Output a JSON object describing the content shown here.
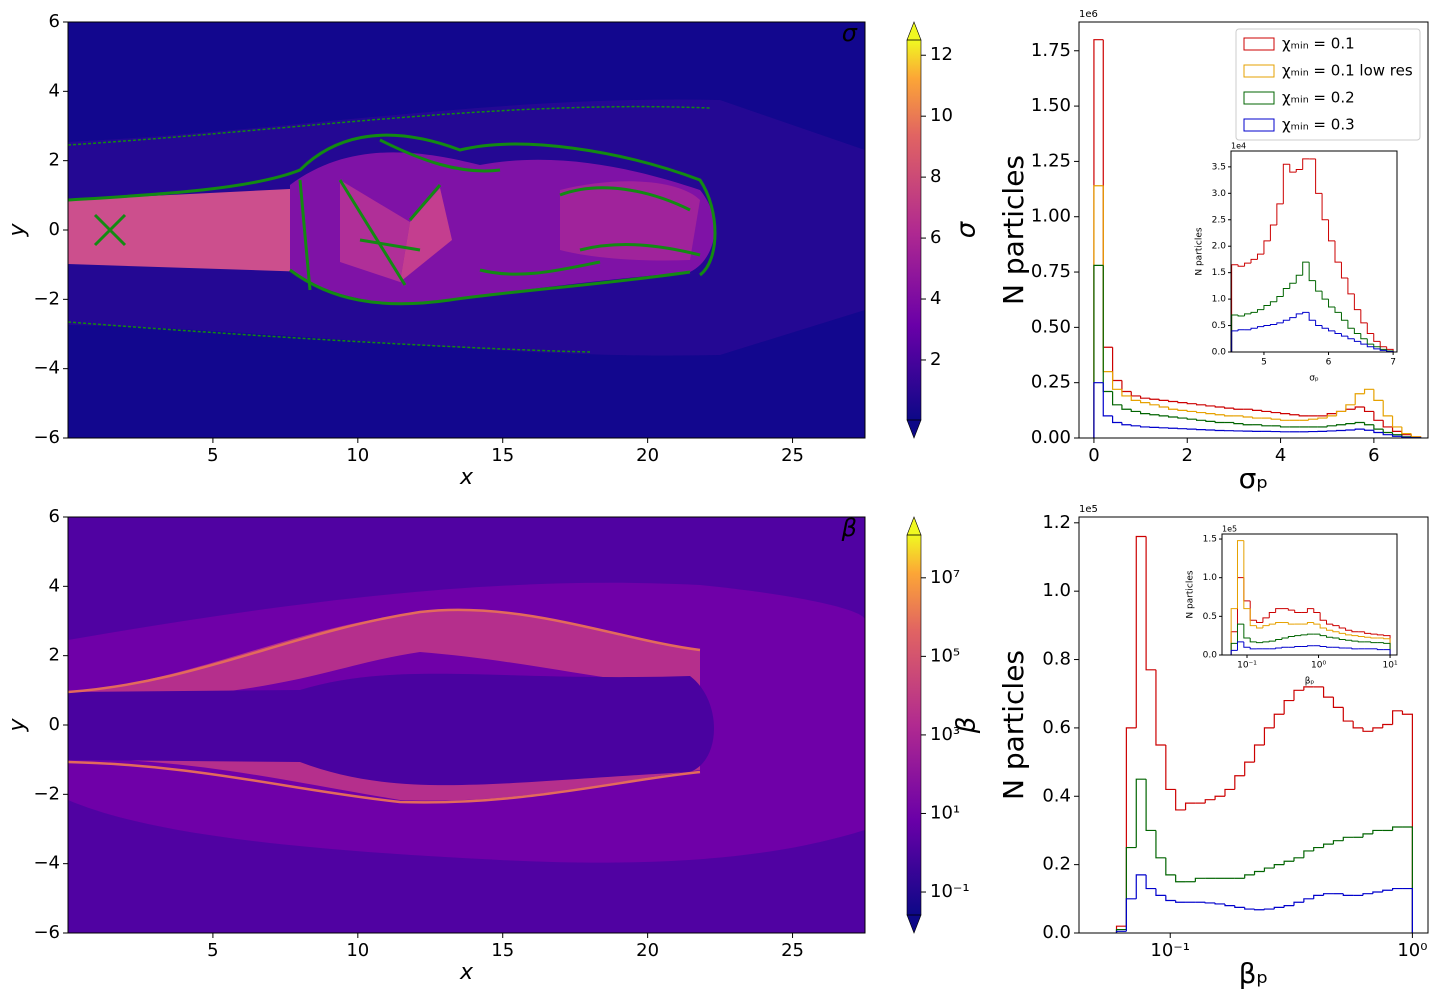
{
  "chart_data": [
    {
      "type": "heatmap",
      "annotation": "σ",
      "xlabel": "x",
      "ylabel": "y",
      "xlim": [
        0,
        27.5
      ],
      "ylim": [
        -6,
        6
      ],
      "xticks": [
        5,
        10,
        15,
        20,
        25
      ],
      "yticks": [
        {
          "value": -6,
          "label": "−6"
        },
        {
          "value": -4,
          "label": "−4"
        },
        {
          "value": -2,
          "label": "−2"
        },
        0,
        2,
        4,
        6
      ],
      "colorbar": {
        "label": "σ",
        "clim": [
          0.03,
          12.5
        ],
        "ticks": [
          2,
          4,
          6,
          8,
          10,
          12
        ],
        "scale": "linear",
        "cmap": "plasma",
        "extend": "both"
      }
    },
    {
      "type": "histogram",
      "xlabel": "σₚ",
      "ylabel": "N particles",
      "offset_label": "1e6",
      "xlim": [
        -0.32,
        7.16
      ],
      "ylim": [
        0,
        1.88
      ],
      "xticks": [
        0,
        2,
        4,
        6
      ],
      "yticks": [
        {
          "value": 0,
          "label": "0.00"
        },
        0.25,
        {
          "value": 0.5,
          "label": "0.50"
        },
        0.75,
        {
          "value": 1,
          "label": "1.00"
        },
        1.25,
        {
          "value": 1.5,
          "label": "1.50"
        },
        1.75
      ],
      "legend": "upper right",
      "bins": [
        0,
        0.2,
        0.4,
        0.6,
        0.8,
        1.0,
        1.2,
        1.4,
        1.6,
        1.8,
        2.0,
        2.2,
        2.4,
        2.6,
        2.8,
        3.0,
        3.2,
        3.4,
        3.6,
        3.8,
        4.0,
        4.2,
        4.4,
        4.6,
        4.8,
        5.0,
        5.2,
        5.4,
        5.6,
        5.8,
        6.0,
        6.2,
        6.4,
        6.6,
        6.8,
        7.0
      ],
      "series": [
        {
          "name": "χₘᵢₙ = 0.1",
          "color": "#cc0000",
          "values": [
            1.8,
            0.41,
            0.26,
            0.21,
            0.19,
            0.18,
            0.175,
            0.17,
            0.165,
            0.16,
            0.155,
            0.15,
            0.145,
            0.14,
            0.135,
            0.13,
            0.13,
            0.125,
            0.12,
            0.115,
            0.11,
            0.105,
            0.1,
            0.1,
            0.1,
            0.11,
            0.12,
            0.13,
            0.14,
            0.12,
            0.08,
            0.05,
            0.03,
            0.015,
            0.005
          ]
        },
        {
          "name": "χₘᵢₙ = 0.1 low res",
          "color": "#e6a100",
          "values": [
            1.14,
            0.3,
            0.22,
            0.19,
            0.17,
            0.16,
            0.15,
            0.14,
            0.13,
            0.125,
            0.12,
            0.115,
            0.11,
            0.105,
            0.1,
            0.1,
            0.095,
            0.09,
            0.09,
            0.085,
            0.08,
            0.08,
            0.08,
            0.085,
            0.09,
            0.1,
            0.12,
            0.15,
            0.2,
            0.22,
            0.17,
            0.1,
            0.05,
            0.02,
            0.005
          ]
        },
        {
          "name": "χₘᵢₙ = 0.2",
          "color": "#006400",
          "values": [
            0.78,
            0.21,
            0.15,
            0.13,
            0.12,
            0.11,
            0.105,
            0.1,
            0.095,
            0.09,
            0.085,
            0.08,
            0.075,
            0.07,
            0.07,
            0.065,
            0.06,
            0.06,
            0.055,
            0.055,
            0.05,
            0.05,
            0.05,
            0.05,
            0.05,
            0.055,
            0.06,
            0.065,
            0.07,
            0.06,
            0.04,
            0.025,
            0.015,
            0.005,
            0.002
          ]
        },
        {
          "name": "χₘᵢₙ = 0.3",
          "color": "#0000cc",
          "values": [
            0.25,
            0.1,
            0.07,
            0.06,
            0.055,
            0.05,
            0.048,
            0.046,
            0.044,
            0.042,
            0.04,
            0.038,
            0.036,
            0.034,
            0.033,
            0.032,
            0.031,
            0.03,
            0.03,
            0.029,
            0.028,
            0.028,
            0.028,
            0.029,
            0.03,
            0.032,
            0.034,
            0.036,
            0.04,
            0.035,
            0.025,
            0.015,
            0.008,
            0.003,
            0.001
          ]
        }
      ]
    },
    {
      "type": "histogram",
      "xlabel": "σₚ",
      "ylabel": "N particles",
      "offset_label": "1e4",
      "xlim": [
        4.49,
        7.06
      ],
      "ylim": [
        0,
        3.8
      ],
      "xticks": [
        5,
        6,
        7
      ],
      "yticks": [
        {
          "value": 0,
          "label": "0.0"
        },
        0.5,
        {
          "value": 1,
          "label": "1.0"
        },
        1.5,
        {
          "value": 2,
          "label": "2.0"
        },
        2.5,
        {
          "value": 3,
          "label": "3.0"
        },
        3.5
      ],
      "bins": [
        4.5,
        4.6,
        4.7,
        4.8,
        4.9,
        5.0,
        5.1,
        5.2,
        5.3,
        5.4,
        5.5,
        5.6,
        5.7,
        5.8,
        5.9,
        6.0,
        6.1,
        6.2,
        6.3,
        6.4,
        6.5,
        6.6,
        6.7,
        6.8,
        6.9,
        7.0
      ],
      "series": [
        {
          "color": "#cc0000",
          "values": [
            1.65,
            1.62,
            1.68,
            1.75,
            1.85,
            2.1,
            2.4,
            2.8,
            3.55,
            3.4,
            3.45,
            3.65,
            3.65,
            3.0,
            2.5,
            2.1,
            1.7,
            1.4,
            1.1,
            0.8,
            0.55,
            0.35,
            0.2,
            0.1,
            0.05
          ]
        },
        {
          "color": "#006400",
          "values": [
            0.7,
            0.68,
            0.72,
            0.75,
            0.8,
            0.88,
            0.95,
            1.05,
            1.2,
            1.3,
            1.45,
            1.7,
            1.35,
            1.15,
            1.0,
            0.85,
            0.75,
            0.6,
            0.45,
            0.35,
            0.25,
            0.15,
            0.1,
            0.05,
            0.02
          ]
        },
        {
          "color": "#0000cc",
          "values": [
            0.4,
            0.42,
            0.42,
            0.45,
            0.48,
            0.5,
            0.52,
            0.55,
            0.6,
            0.65,
            0.72,
            0.75,
            0.6,
            0.5,
            0.45,
            0.4,
            0.35,
            0.3,
            0.25,
            0.2,
            0.15,
            0.1,
            0.06,
            0.03,
            0.01
          ]
        }
      ]
    },
    {
      "type": "heatmap",
      "annotation": "β",
      "xlabel": "x",
      "ylabel": "y",
      "xlim": [
        0,
        27.5
      ],
      "ylim": [
        -6,
        6
      ],
      "xticks": [
        5,
        10,
        15,
        20,
        25
      ],
      "yticks": [
        {
          "value": -6,
          "label": "−6"
        },
        {
          "value": -4,
          "label": "−4"
        },
        {
          "value": -2,
          "label": "−2"
        },
        0,
        2,
        4,
        6
      ],
      "colorbar": {
        "label": "β",
        "clim": [
          0.026,
          123000000
        ],
        "scale": "log",
        "cmap": "plasma",
        "extend": "both",
        "ticks": [
          {
            "value": 0.1,
            "label": "10⁻¹"
          },
          {
            "value": 10,
            "label": "10¹"
          },
          {
            "value": 1000,
            "label": "10³"
          },
          {
            "value": 100000,
            "label": "10⁵"
          },
          {
            "value": 10000000,
            "label": "10⁷"
          }
        ]
      }
    },
    {
      "type": "histogram",
      "xlabel": "βₚ",
      "ylabel": "N particles",
      "offset_label": "1e5",
      "xscale": "log",
      "xlim": [
        0.042,
        1.16
      ],
      "ylim": [
        0,
        1.217
      ],
      "xticks": [
        {
          "value": 0.1,
          "label": "10⁻¹"
        },
        {
          "value": 1,
          "label": "10⁰"
        }
      ],
      "yticks": [
        {
          "value": 0,
          "label": "0.0"
        },
        0.2,
        0.4,
        0.6,
        0.8,
        {
          "value": 1,
          "label": "1.0"
        },
        1.2
      ],
      "bins": [
        0.06,
        0.0659,
        0.0724,
        0.0795,
        0.0873,
        0.0959,
        0.1053,
        0.1157,
        0.127,
        0.1395,
        0.1532,
        0.1683,
        0.1848,
        0.203,
        0.2229,
        0.2449,
        0.2689,
        0.2954,
        0.3244,
        0.3563,
        0.3913,
        0.4298,
        0.472,
        0.5184,
        0.5694,
        0.6253,
        0.6868,
        0.7543,
        0.8285,
        0.9099,
        1.0
      ],
      "series": [
        {
          "color": "#cc0000",
          "values": [
            0.02,
            0.6,
            1.16,
            0.77,
            0.55,
            0.42,
            0.36,
            0.38,
            0.38,
            0.39,
            0.4,
            0.42,
            0.46,
            0.5,
            0.55,
            0.6,
            0.64,
            0.68,
            0.71,
            0.72,
            0.72,
            0.69,
            0.66,
            0.62,
            0.6,
            0.59,
            0.6,
            0.61,
            0.65,
            0.64
          ]
        },
        {
          "color": "#006400",
          "values": [
            0.01,
            0.25,
            0.45,
            0.3,
            0.22,
            0.17,
            0.15,
            0.15,
            0.16,
            0.16,
            0.16,
            0.16,
            0.16,
            0.17,
            0.18,
            0.19,
            0.2,
            0.21,
            0.22,
            0.24,
            0.25,
            0.26,
            0.27,
            0.28,
            0.28,
            0.29,
            0.3,
            0.3,
            0.31,
            0.31
          ]
        },
        {
          "color": "#0000cc",
          "values": [
            0.005,
            0.1,
            0.17,
            0.13,
            0.11,
            0.095,
            0.09,
            0.09,
            0.09,
            0.088,
            0.085,
            0.08,
            0.075,
            0.07,
            0.068,
            0.07,
            0.075,
            0.08,
            0.09,
            0.1,
            0.11,
            0.115,
            0.115,
            0.11,
            0.11,
            0.115,
            0.12,
            0.125,
            0.13,
            0.13
          ]
        }
      ]
    },
    {
      "type": "histogram",
      "xlabel": "βₚ",
      "ylabel": "N particles",
      "offset_label": "1e5",
      "xscale": "log",
      "xlim": [
        0.0447,
        12.5
      ],
      "ylim": [
        0,
        1.565
      ],
      "xticks": [
        {
          "value": 0.1,
          "label": "10⁻¹"
        },
        {
          "value": 1,
          "label": "10⁰"
        },
        {
          "value": 10,
          "label": "10¹"
        }
      ],
      "yticks": [
        {
          "value": 0,
          "label": "0.0"
        },
        0.5,
        {
          "value": 1,
          "label": "1.0"
        },
        1.5
      ],
      "bins": [
        0.06,
        0.0736,
        0.0903,
        0.1108,
        0.136,
        0.1669,
        0.2048,
        0.2513,
        0.3084,
        0.3784,
        0.4644,
        0.5698,
        0.6992,
        0.858,
        1.0528,
        1.2919,
        1.5853,
        1.9453,
        2.3871,
        2.9292,
        3.5944,
        4.4107,
        5.4124,
        6.6415,
        8.1498,
        10.0
      ],
      "series": [
        {
          "color": "#cc0000",
          "values": [
            0.3,
            1.0,
            0.7,
            0.45,
            0.42,
            0.48,
            0.55,
            0.6,
            0.6,
            0.58,
            0.55,
            0.55,
            0.6,
            0.55,
            0.45,
            0.4,
            0.38,
            0.35,
            0.32,
            0.3,
            0.3,
            0.28,
            0.27,
            0.26,
            0.25
          ]
        },
        {
          "color": "#e6a100",
          "values": [
            0.6,
            1.48,
            0.6,
            0.38,
            0.35,
            0.38,
            0.4,
            0.42,
            0.42,
            0.4,
            0.4,
            0.4,
            0.42,
            0.4,
            0.35,
            0.32,
            0.3,
            0.28,
            0.26,
            0.25,
            0.24,
            0.23,
            0.22,
            0.22,
            0.21
          ]
        },
        {
          "color": "#006400",
          "values": [
            0.15,
            0.4,
            0.22,
            0.17,
            0.16,
            0.17,
            0.18,
            0.2,
            0.22,
            0.24,
            0.25,
            0.26,
            0.27,
            0.27,
            0.25,
            0.23,
            0.22,
            0.2,
            0.19,
            0.18,
            0.17,
            0.17,
            0.16,
            0.16,
            0.15
          ]
        },
        {
          "color": "#0000cc",
          "values": [
            0.06,
            0.17,
            0.1,
            0.08,
            0.08,
            0.08,
            0.08,
            0.09,
            0.1,
            0.1,
            0.11,
            0.11,
            0.12,
            0.12,
            0.11,
            0.1,
            0.1,
            0.09,
            0.09,
            0.08,
            0.08,
            0.08,
            0.08,
            0.07,
            0.07
          ]
        }
      ]
    }
  ]
}
